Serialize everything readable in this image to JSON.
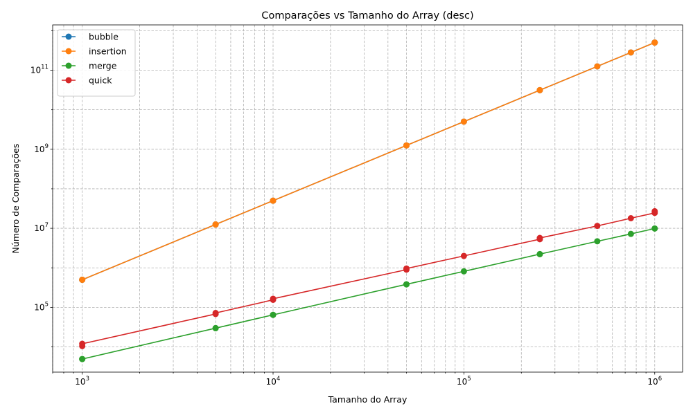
{
  "chart_data": {
    "type": "line",
    "title": "Comparações vs Tamanho do Array (desc)",
    "xlabel": "Tamanho do Array",
    "ylabel": "Número de Comparações",
    "xscale": "log",
    "yscale": "log",
    "xlim": [
      700,
      1400000
    ],
    "ylim": [
      2300,
      1400000000000
    ],
    "grid": "both (major and minor, dashed)",
    "legend_position": "top-left",
    "x_ticks": [
      {
        "value": 1000,
        "base": "10",
        "exp": "3"
      },
      {
        "value": 10000,
        "base": "10",
        "exp": "4"
      },
      {
        "value": 100000,
        "base": "10",
        "exp": "5"
      },
      {
        "value": 1000000,
        "base": "10",
        "exp": "6"
      }
    ],
    "y_ticks": [
      {
        "value": 100000,
        "base": "10",
        "exp": "5"
      },
      {
        "value": 10000000,
        "base": "10",
        "exp": "7"
      },
      {
        "value": 1000000000,
        "base": "10",
        "exp": "9"
      },
      {
        "value": 100000000000,
        "base": "10",
        "exp": "11"
      }
    ],
    "series": [
      {
        "name": "bubble",
        "color": "#1f77b4",
        "points": [
          [
            1000,
            499500
          ],
          [
            1000,
            499500
          ],
          [
            5000,
            12497500
          ],
          [
            5000,
            12497500
          ],
          [
            10000,
            49995000
          ],
          [
            10000,
            49995000
          ],
          [
            50000,
            1249975000
          ],
          [
            50000,
            1249975000
          ],
          [
            100000,
            4999950000
          ],
          [
            250000,
            31249875000
          ],
          [
            250000,
            31249875000
          ],
          [
            500000,
            124999750000
          ],
          [
            750000,
            281249625000
          ],
          [
            1000000,
            499999500000
          ],
          [
            1000000,
            499999500000
          ]
        ]
      },
      {
        "name": "insertion",
        "color": "#ff7f0e",
        "points": [
          [
            1000,
            499500
          ],
          [
            1000,
            499500
          ],
          [
            5000,
            12497500
          ],
          [
            5000,
            12497500
          ],
          [
            10000,
            49995000
          ],
          [
            10000,
            49995000
          ],
          [
            50000,
            1249975000
          ],
          [
            50000,
            1249975000
          ],
          [
            100000,
            4999950000
          ],
          [
            250000,
            31249875000
          ],
          [
            250000,
            31249875000
          ],
          [
            500000,
            124999750000
          ],
          [
            750000,
            281249625000
          ],
          [
            1000000,
            499999500000
          ],
          [
            1000000,
            499999500000
          ]
        ]
      },
      {
        "name": "merge",
        "color": "#2ca02c",
        "points": [
          [
            1000,
            4932
          ],
          [
            1000,
            4932
          ],
          [
            5000,
            29804
          ],
          [
            5000,
            29804
          ],
          [
            10000,
            64608
          ],
          [
            10000,
            64608
          ],
          [
            50000,
            382512
          ],
          [
            50000,
            382512
          ],
          [
            100000,
            815024
          ],
          [
            250000,
            2223340
          ],
          [
            250000,
            2223340
          ],
          [
            500000,
            4692496
          ],
          [
            750000,
            7218256
          ],
          [
            1000000,
            9884992
          ],
          [
            1000000,
            9884992
          ]
        ]
      },
      {
        "name": "quick",
        "color": "#d62728",
        "points": [
          [
            1000,
            10500
          ],
          [
            1000,
            12000
          ],
          [
            5000,
            68000
          ],
          [
            5000,
            72000
          ],
          [
            10000,
            155000
          ],
          [
            10000,
            165000
          ],
          [
            50000,
            900000
          ],
          [
            50000,
            960000
          ],
          [
            100000,
            2000000
          ],
          [
            250000,
            5300000
          ],
          [
            250000,
            5700000
          ],
          [
            500000,
            11500000
          ],
          [
            750000,
            18000000
          ],
          [
            1000000,
            24500000
          ],
          [
            1000000,
            27000000
          ]
        ]
      }
    ]
  }
}
